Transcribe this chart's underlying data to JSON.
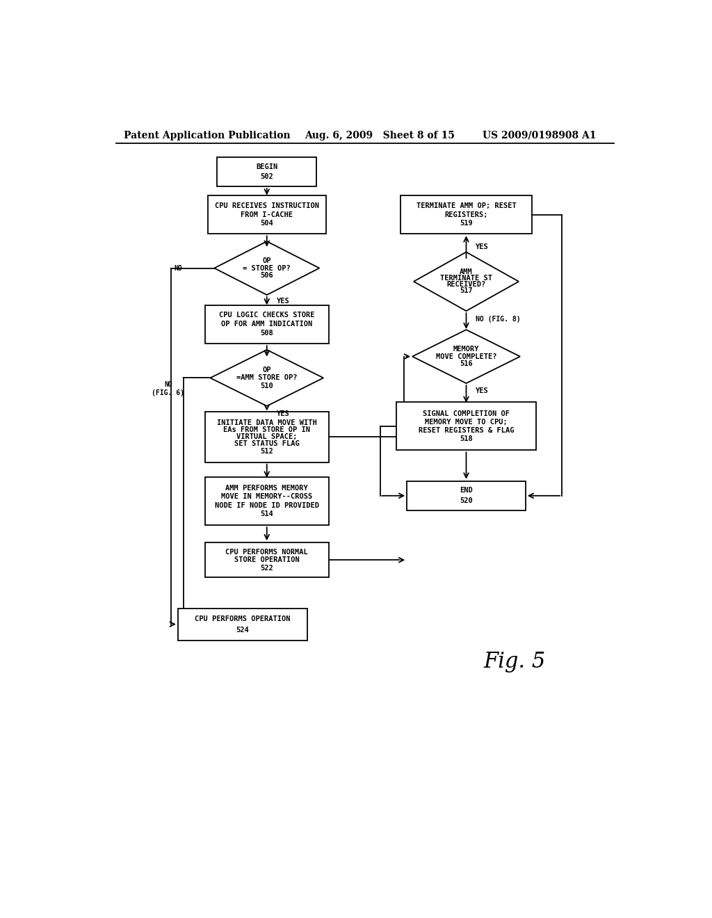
{
  "header_left": "Patent Application Publication",
  "header_mid": "Aug. 6, 2009   Sheet 8 of 15",
  "header_right": "US 2009/0198908 A1",
  "fig_label": "Fig. 5",
  "bg_color": "#ffffff",
  "text_color": "#000000",
  "font_size": 7.5,
  "header_font_size": 10,
  "fig_font_size": 22,
  "lw": 1.3
}
